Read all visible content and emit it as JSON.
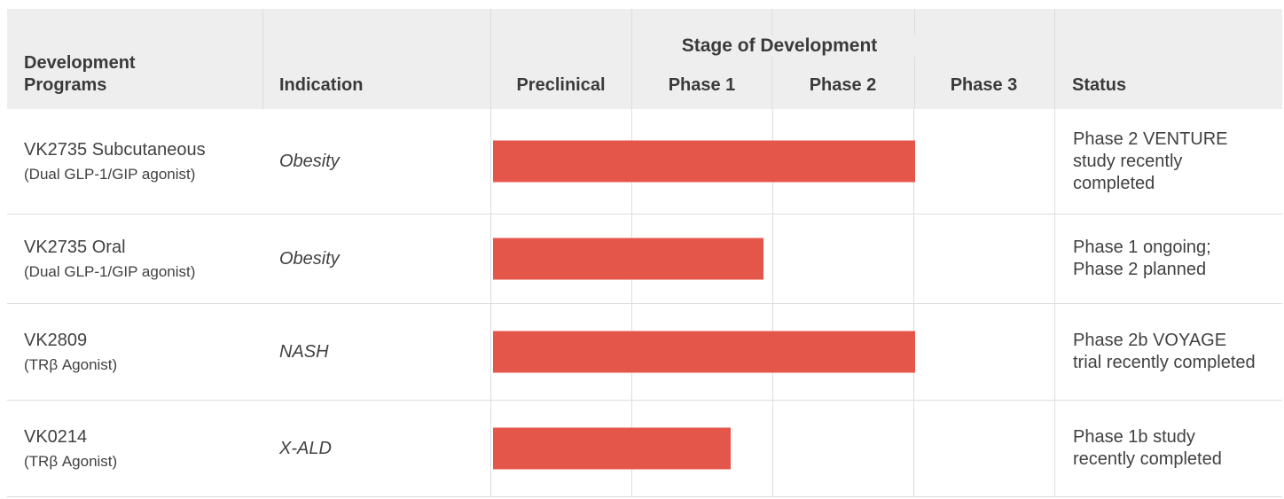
{
  "colors": {
    "bar": "#E5564A",
    "header_bg": "#EEEEEE",
    "grid": "#DDDDDD",
    "text": "#414141",
    "text_strong": "#3A3A3A"
  },
  "header": {
    "programs": "Development Programs",
    "indication": "Indication",
    "stage_group": "Stage of Development",
    "stages": [
      "Preclinical",
      "Phase 1",
      "Phase 2",
      "Phase 3"
    ],
    "status": "Status"
  },
  "rows": [
    {
      "program": "VK2735 Subcutaneous",
      "program_sub": "(Dual GLP-1/GIP agonist)",
      "indication": "Obesity",
      "bar_pct": 74.8,
      "status": "Phase 2 VENTURE study recently completed"
    },
    {
      "program": "VK2735 Oral",
      "program_sub": "(Dual GLP-1/GIP agonist)",
      "indication": "Obesity",
      "bar_pct": 48.0,
      "status": "Phase 1 ongoing; Phase 2 planned"
    },
    {
      "program": "VK2809",
      "program_sub": "(TRβ Agonist)",
      "indication": "NASH",
      "bar_pct": 74.8,
      "status": "Phase 2b VOYAGE trial recently completed"
    },
    {
      "program": "VK0214",
      "program_sub": "(TRβ Agonist)",
      "indication": "X-ALD",
      "bar_pct": 42.1,
      "status": "Phase 1b study recently completed"
    }
  ],
  "chart_data": {
    "type": "bar",
    "title": "Stage of Development",
    "orientation": "horizontal",
    "categories": [
      "VK2735 Subcutaneous",
      "VK2735 Oral",
      "VK2809",
      "VK0214"
    ],
    "x_stages": [
      "Preclinical",
      "Phase 1",
      "Phase 2",
      "Phase 3"
    ],
    "values": [
      3.0,
      1.92,
      3.0,
      1.69
    ],
    "value_unit": "stage columns spanned (of 4), bars start at Preclinical",
    "xlim": [
      0,
      4
    ],
    "grid": true,
    "bar_color": "#E5564A"
  }
}
